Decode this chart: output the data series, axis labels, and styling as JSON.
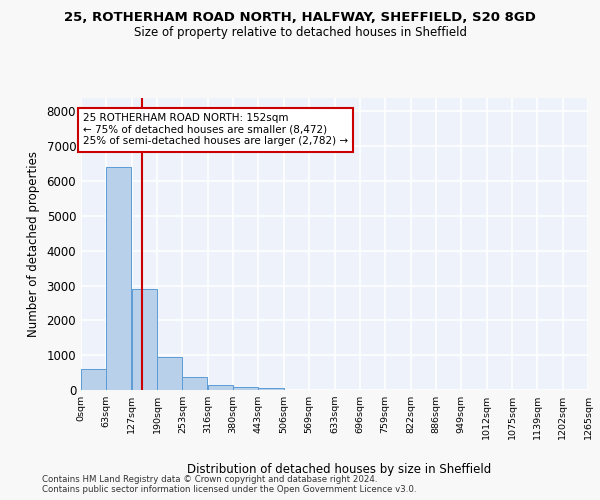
{
  "title_line1": "25, ROTHERHAM ROAD NORTH, HALFWAY, SHEFFIELD, S20 8GD",
  "title_line2": "Size of property relative to detached houses in Sheffield",
  "xlabel": "Distribution of detached houses by size in Sheffield",
  "ylabel": "Number of detached properties",
  "bar_values": [
    600,
    6400,
    2900,
    950,
    360,
    150,
    90,
    55,
    0,
    0,
    0,
    0,
    0,
    0,
    0,
    0,
    0,
    0,
    0,
    0
  ],
  "bar_labels": [
    "0sqm",
    "63sqm",
    "127sqm",
    "190sqm",
    "253sqm",
    "316sqm",
    "380sqm",
    "443sqm",
    "506sqm",
    "569sqm",
    "633sqm",
    "696sqm",
    "759sqm",
    "822sqm",
    "886sqm",
    "949sqm",
    "1012sqm",
    "1075sqm",
    "1139sqm",
    "1202sqm",
    "1265sqm"
  ],
  "bar_color": "#b8d0ea",
  "bar_edge_color": "#5b9bd5",
  "vline_x_sqm": 152,
  "vline_color": "#cc0000",
  "annotation_line1": "25 ROTHERHAM ROAD NORTH: 152sqm",
  "annotation_line2": "← 75% of detached houses are smaller (8,472)",
  "annotation_line3": "25% of semi-detached houses are larger (2,782) →",
  "ylim_max": 8400,
  "yticks": [
    0,
    1000,
    2000,
    3000,
    4000,
    5000,
    6000,
    7000,
    8000
  ],
  "footer_text": "Contains HM Land Registry data © Crown copyright and database right 2024.\nContains public sector information licensed under the Open Government Licence v3.0.",
  "bg_color": "#edf2fb",
  "grid_color": "#ffffff",
  "bin_width": 63
}
